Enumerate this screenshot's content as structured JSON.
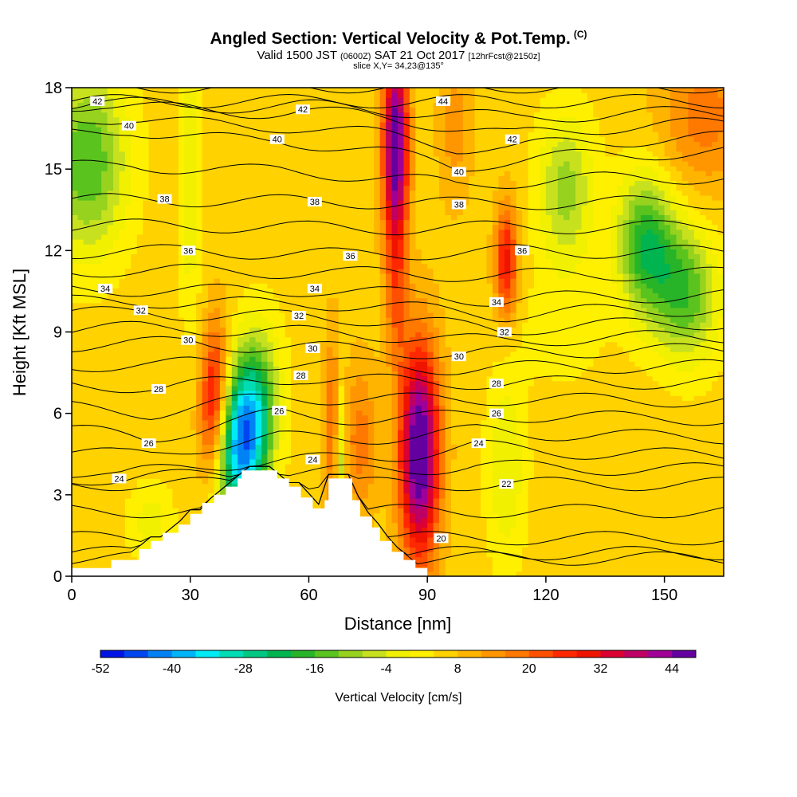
{
  "header": {
    "title": "Angled Section: Vertical Velocity & Pot.Temp.",
    "title_units": "(C)",
    "subtitle_main": "Valid 1500 JST",
    "subtitle_zulu": "(0600Z)",
    "subtitle_date": "SAT 21 Oct 2017",
    "subtitle_fcst": "[12hrFcst@2150z]",
    "slice": "slice X,Y= 34,23@135°"
  },
  "chart_data": {
    "type": "heatmap",
    "title": "Angled Section: Vertical Velocity & Pot.Temp.",
    "xlabel": "Distance [nm]",
    "ylabel": "Height [Kft MSL]",
    "xlim": [
      0,
      165
    ],
    "ylim": [
      0,
      18
    ],
    "x_ticks": [
      0,
      30,
      60,
      90,
      120,
      150
    ],
    "y_ticks": [
      0,
      3,
      6,
      9,
      12,
      15,
      18
    ],
    "colorbar": {
      "title": "Vertical Velocity [cm/s]",
      "min": -52,
      "max": 48,
      "step": 4,
      "tick_values": [
        -52,
        -40,
        -28,
        -16,
        -4,
        8,
        20,
        32,
        44
      ],
      "colors": [
        "#0014e6",
        "#0046f0",
        "#0082f5",
        "#00b4f8",
        "#00ebf5",
        "#00dcb4",
        "#00c882",
        "#00b450",
        "#28b428",
        "#5ac31e",
        "#96d21e",
        "#c8e11e",
        "#f0f000",
        "#fff000",
        "#ffd200",
        "#ffb400",
        "#ff9600",
        "#ff7800",
        "#ff5000",
        "#ff2800",
        "#f01400",
        "#dc0032",
        "#be0064",
        "#a00096",
        "#6400a0"
      ]
    },
    "terrain_profile": [
      [
        0,
        0.3
      ],
      [
        10,
        0.3
      ],
      [
        10,
        0.6
      ],
      [
        17,
        0.6
      ],
      [
        17,
        1
      ],
      [
        20,
        1
      ],
      [
        20,
        1.3
      ],
      [
        23,
        1.3
      ],
      [
        23,
        1.6
      ],
      [
        27,
        1.6
      ],
      [
        27,
        1.9
      ],
      [
        30,
        1.9
      ],
      [
        30,
        2.3
      ],
      [
        33,
        2.3
      ],
      [
        33,
        2.7
      ],
      [
        36,
        2.7
      ],
      [
        36,
        3.0
      ],
      [
        39,
        3.0
      ],
      [
        39,
        3.3
      ],
      [
        42,
        3.3
      ],
      [
        42,
        3.6
      ],
      [
        43,
        3.6
      ],
      [
        43,
        3.9
      ],
      [
        52,
        3.9
      ],
      [
        52,
        3.6
      ],
      [
        55,
        3.6
      ],
      [
        55,
        3.3
      ],
      [
        58,
        3.3
      ],
      [
        58,
        2.9
      ],
      [
        61,
        2.9
      ],
      [
        61,
        2.5
      ],
      [
        64,
        2.5
      ],
      [
        64,
        2.8
      ],
      [
        65,
        2.8
      ],
      [
        65,
        3.6
      ],
      [
        71,
        3.6
      ],
      [
        71,
        2.8
      ],
      [
        73,
        2.8
      ],
      [
        73,
        2.2
      ],
      [
        76,
        2.2
      ],
      [
        76,
        1.8
      ],
      [
        78,
        1.8
      ],
      [
        78,
        1.3
      ],
      [
        81,
        1.3
      ],
      [
        81,
        0.9
      ],
      [
        84,
        0.9
      ],
      [
        84,
        0.6
      ],
      [
        87,
        0.6
      ],
      [
        87,
        0.3
      ],
      [
        90,
        0.3
      ],
      [
        90,
        0
      ],
      [
        0,
        0
      ]
    ],
    "vertical_velocity_features": [
      {
        "x": 44,
        "y": 5.2,
        "sx": 4.5,
        "sy": 2.2,
        "tilt": 0.55,
        "value": -52
      },
      {
        "x": 36,
        "y": 6.5,
        "sx": 2.5,
        "sy": 2.0,
        "tilt": 0.2,
        "value": 26
      },
      {
        "x": 88,
        "y": 4.6,
        "sx": 3.5,
        "sy": 2.8,
        "tilt": 0.0,
        "value": 46
      },
      {
        "x": 82,
        "y": 15.8,
        "sx": 2.2,
        "sy": 2.8,
        "tilt": 0.0,
        "value": 44
      },
      {
        "x": 82,
        "y": 10.0,
        "sx": 2.0,
        "sy": 1.8,
        "tilt": 0.0,
        "value": 10
      },
      {
        "x": 110,
        "y": 11.6,
        "sx": 2.0,
        "sy": 1.5,
        "tilt": 0.0,
        "value": 24
      },
      {
        "x": 4,
        "y": 15.3,
        "sx": 7.0,
        "sy": 2.4,
        "tilt": 0.0,
        "value": -22
      },
      {
        "x": 145,
        "y": 12.3,
        "sx": 5.0,
        "sy": 1.8,
        "tilt": 0.0,
        "value": -24
      },
      {
        "x": 155,
        "y": 10.5,
        "sx": 6.0,
        "sy": 1.8,
        "tilt": -0.2,
        "value": -22
      },
      {
        "x": 125,
        "y": 14.2,
        "sx": 5.0,
        "sy": 2.0,
        "tilt": 0.0,
        "value": -16
      },
      {
        "x": 30,
        "y": 14.5,
        "sx": 2.0,
        "sy": 3.5,
        "tilt": 0.0,
        "value": -10
      },
      {
        "x": 68,
        "y": 4.5,
        "sx": 1.0,
        "sy": 2.0,
        "tilt": 0.0,
        "value": -18
      },
      {
        "x": 66,
        "y": 5.5,
        "sx": 1.5,
        "sy": 2.5,
        "tilt": 0.0,
        "value": 14
      },
      {
        "x": 110,
        "y": 4.0,
        "sx": 3.5,
        "sy": 2.5,
        "tilt": 0.0,
        "value": -10
      },
      {
        "x": 73,
        "y": 5.0,
        "sx": 3.0,
        "sy": 2.0,
        "tilt": 0.0,
        "value": 12
      },
      {
        "x": 20,
        "y": 2.0,
        "sx": 4.0,
        "sy": 1.0,
        "tilt": 0.0,
        "value": -8
      },
      {
        "x": 160,
        "y": 17.0,
        "sx": 8.0,
        "sy": 2.0,
        "tilt": 0.0,
        "value": 12
      },
      {
        "x": 97,
        "y": 16.5,
        "sx": 3.0,
        "sy": 2.0,
        "tilt": 0.0,
        "value": 8
      },
      {
        "x": 124,
        "y": 9.0,
        "sx": 8.0,
        "sy": 1.5,
        "tilt": 0.0,
        "value": -4
      }
    ],
    "potential_temperature": {
      "units": "C",
      "contour_step": 1,
      "labeled_levels": [
        {
          "value": "42",
          "x": 6.5,
          "y": 17.5
        },
        {
          "value": "40",
          "x": 14.5,
          "y": 16.6
        },
        {
          "value": "38",
          "x": 23.5,
          "y": 13.9
        },
        {
          "value": "36",
          "x": 29.5,
          "y": 12.0
        },
        {
          "value": "34",
          "x": 8.5,
          "y": 10.6
        },
        {
          "value": "32",
          "x": 17.5,
          "y": 9.8
        },
        {
          "value": "30",
          "x": 29.5,
          "y": 8.7
        },
        {
          "value": "28",
          "x": 22,
          "y": 6.9
        },
        {
          "value": "26",
          "x": 19.5,
          "y": 4.9
        },
        {
          "value": "24",
          "x": 12,
          "y": 3.6
        },
        {
          "value": "42",
          "x": 58.5,
          "y": 17.2
        },
        {
          "value": "40",
          "x": 52,
          "y": 16.1
        },
        {
          "value": "38",
          "x": 61.5,
          "y": 13.8
        },
        {
          "value": "36",
          "x": 70.5,
          "y": 11.8
        },
        {
          "value": "34",
          "x": 61.5,
          "y": 10.6
        },
        {
          "value": "32",
          "x": 57.5,
          "y": 9.6
        },
        {
          "value": "30",
          "x": 61,
          "y": 8.4
        },
        {
          "value": "28",
          "x": 58,
          "y": 7.4
        },
        {
          "value": "26",
          "x": 52.5,
          "y": 6.1
        },
        {
          "value": "24",
          "x": 61,
          "y": 4.3
        },
        {
          "value": "44",
          "x": 94,
          "y": 17.5
        },
        {
          "value": "42",
          "x": 111.5,
          "y": 16.1
        },
        {
          "value": "40",
          "x": 98,
          "y": 14.9
        },
        {
          "value": "38",
          "x": 98,
          "y": 13.7
        },
        {
          "value": "36",
          "x": 114,
          "y": 12.0
        },
        {
          "value": "34",
          "x": 107.5,
          "y": 10.1
        },
        {
          "value": "32",
          "x": 109.5,
          "y": 9.0
        },
        {
          "value": "30",
          "x": 98,
          "y": 8.1
        },
        {
          "value": "28",
          "x": 107.5,
          "y": 7.1
        },
        {
          "value": "26",
          "x": 107.5,
          "y": 6.0
        },
        {
          "value": "24",
          "x": 103,
          "y": 4.9
        },
        {
          "value": "22",
          "x": 110,
          "y": 3.4
        },
        {
          "value": "20",
          "x": 93.5,
          "y": 1.4
        }
      ]
    }
  }
}
